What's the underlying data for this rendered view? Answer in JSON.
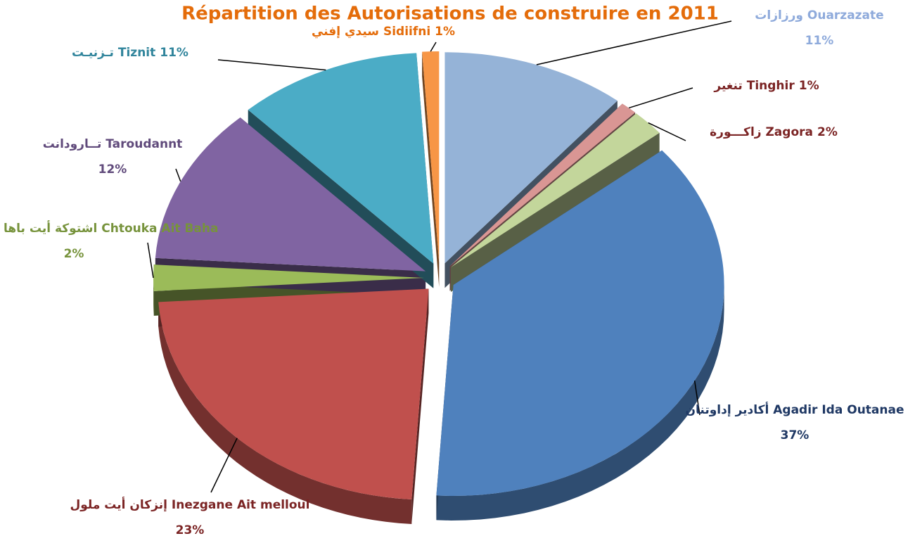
{
  "chart_data": {
    "type": "pie",
    "title": "Répartition des Autorisations de construire en 2011",
    "categories": [
      "ورزازات Ouarzazate",
      "تنغير Tinghir",
      "زاكـــورة Zagora",
      "أكادير إداوتنان Agadir Ida Outanae",
      "إنزكان أيت ملول Inezgane Ait melloul",
      "اشتوكة أيت باها Chtouka Ait Baha",
      "تــارودانت Taroudannt",
      "تـزنيـت Tiznit",
      "سيدي إفني Sidiifni"
    ],
    "values": [
      11,
      1,
      2,
      37,
      23,
      2,
      12,
      11,
      1
    ],
    "value_labels": [
      "11%",
      "1%",
      "2%",
      "37%",
      "23%",
      "2%",
      "12%",
      "11%",
      "1%"
    ],
    "colors": [
      "#95b3d7",
      "#d99694",
      "#c3d69b",
      "#4f81bd",
      "#c0504d",
      "#9bbb59",
      "#8064a2",
      "#4bacc6",
      "#f79646"
    ],
    "label_colors": [
      "#8eaadb",
      "#7b2424",
      "#7b2424",
      "#1f3864",
      "#7b2424",
      "#77933c",
      "#604a7b",
      "#31859c",
      "#e46c0a"
    ],
    "title_color": "#e46c0a"
  }
}
